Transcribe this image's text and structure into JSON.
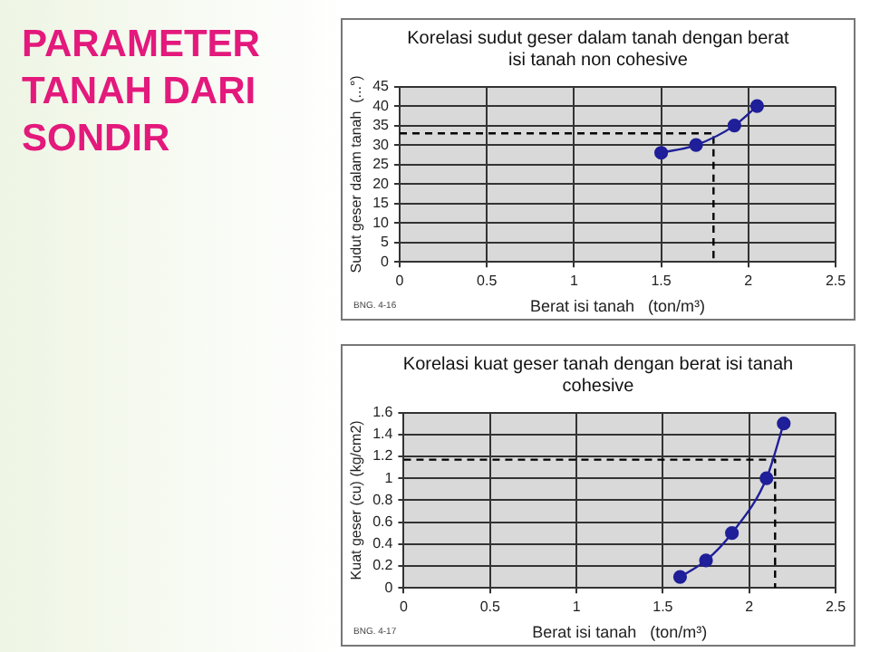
{
  "chart_data": [
    {
      "type": "other",
      "title": "PARAMETER TANAH DARI SONDIR"
    },
    {
      "type": "line",
      "title": "Korelasi sudut geser dalam tanah dengan berat isi tanah non cohesive",
      "xlabel": "Berat isi tanah   (ton/m³)",
      "ylabel": "Sudut geser dalam tanah  (...°)",
      "xlim": [
        0,
        2.5
      ],
      "xticks": [
        0,
        0.5,
        1,
        1.5,
        2,
        2.5
      ],
      "ylim": [
        0,
        45
      ],
      "yticks": [
        0,
        5,
        10,
        15,
        20,
        25,
        30,
        35,
        40,
        45
      ],
      "grid": true,
      "legend": false,
      "annotations": [
        "BNG. 4-16"
      ],
      "series": [
        {
          "type": "line",
          "color": "#1f1f99",
          "marker": "circle",
          "line_style": "solid",
          "x": [
            1.5,
            1.7,
            1.92,
            2.05
          ],
          "values": [
            28,
            30,
            35,
            40
          ]
        },
        {
          "type": "line",
          "color": "#000000",
          "marker": "none",
          "line_style": "dashed",
          "x": [
            0,
            1.8,
            1.8
          ],
          "values": [
            33,
            33,
            0
          ]
        }
      ]
    },
    {
      "type": "line",
      "title": "Korelasi kuat geser tanah dengan berat isi tanah cohesive",
      "xlabel": "Berat isi tanah   (ton/m³)",
      "ylabel": "Kuat geser (cu) (kg/cm2)",
      "xlim": [
        0,
        2.5
      ],
      "xticks": [
        0,
        0.5,
        1,
        1.5,
        2,
        2.5
      ],
      "ylim": [
        0,
        1.6
      ],
      "yticks": [
        0,
        0.2,
        0.4,
        0.6,
        0.8,
        1,
        1.2,
        1.4,
        1.6
      ],
      "grid": true,
      "legend": false,
      "annotations": [
        "BNG. 4-17"
      ],
      "series": [
        {
          "type": "line",
          "color": "#1f1f99",
          "marker": "circle",
          "line_style": "solid",
          "x": [
            1.6,
            1.75,
            1.9,
            2.1,
            2.2
          ],
          "values": [
            0.1,
            0.25,
            0.5,
            1.0,
            1.5
          ]
        },
        {
          "type": "line",
          "color": "#000000",
          "marker": "none",
          "line_style": "dashed",
          "x": [
            0,
            2.15,
            2.15
          ],
          "values": [
            1.17,
            1.17,
            0
          ]
        }
      ]
    }
  ]
}
